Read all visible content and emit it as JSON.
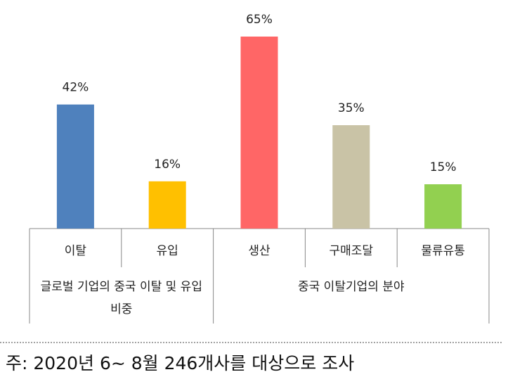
{
  "chart_data": {
    "type": "bar",
    "groups": [
      {
        "label": "글로벌 기업의 중국 이탈 및 유입 비중",
        "categories": [
          "이탈",
          "유입"
        ],
        "values": [
          42,
          16
        ],
        "value_labels": [
          "42%",
          "16%"
        ],
        "colors": [
          "#4f81bd",
          "#ffc000"
        ]
      },
      {
        "label": "중국 이탈기업의 분야",
        "categories": [
          "생산",
          "구매조달",
          "물류유통"
        ],
        "values": [
          65,
          35,
          15
        ],
        "value_labels": [
          "65%",
          "35%",
          "15%"
        ],
        "colors": [
          "#ff6666",
          "#c9c3a6",
          "#92d050"
        ]
      }
    ],
    "note": "주: 2020년 6~ 8월 246개사를 대상으로 조사"
  }
}
